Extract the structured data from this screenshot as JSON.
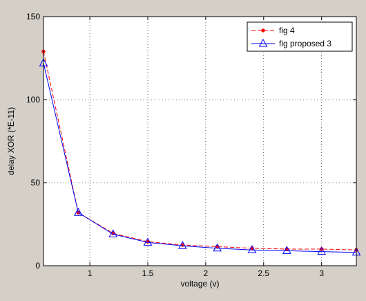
{
  "figure": {
    "background": "#d4d0c8",
    "axes_background": "#ffffff"
  },
  "chart_data": {
    "type": "line",
    "title": "",
    "xlabel": "voltage (v)",
    "ylabel": "delay XOR (*E-11)",
    "xlim": [
      0.6,
      3.3
    ],
    "ylim": [
      0,
      150
    ],
    "xticks": [
      1,
      1.5,
      2,
      2.5,
      3
    ],
    "xtick_labels": [
      "1",
      "1.5",
      "2",
      "2.5",
      "3"
    ],
    "yticks": [
      0,
      50,
      100,
      150
    ],
    "ytick_labels": [
      "0",
      "50",
      "100",
      "150"
    ],
    "grid": true,
    "grid_style": "dotted",
    "legend_position": "top-right",
    "series": [
      {
        "name": "fig 4",
        "color": "#ff0000",
        "line_style": "dashed",
        "marker": "dot",
        "x": [
          0.6,
          0.9,
          1.2,
          1.5,
          1.8,
          2.1,
          2.4,
          2.7,
          3.0,
          3.3
        ],
        "y": [
          129,
          32,
          19.5,
          14.5,
          12.5,
          11.5,
          10.5,
          10,
          10,
          9.5
        ]
      },
      {
        "name": "fig proposed 3",
        "color": "#0000ff",
        "line_style": "solid",
        "marker": "triangle",
        "x": [
          0.6,
          0.9,
          1.2,
          1.5,
          1.8,
          2.1,
          2.4,
          2.7,
          3.0,
          3.3
        ],
        "y": [
          122,
          32,
          19,
          14,
          12,
          10.5,
          9.5,
          9,
          8.5,
          8
        ]
      }
    ]
  }
}
